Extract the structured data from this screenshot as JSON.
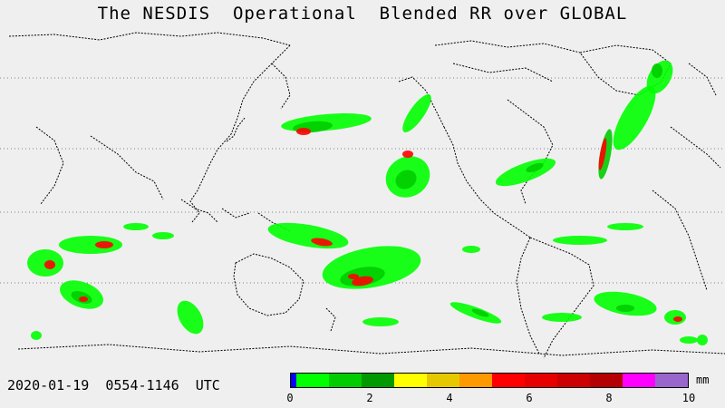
{
  "title": "The NESDIS  Operational  Blended RR over GLOBAL",
  "time_label": "2020-01-19  0554-1146  UTC",
  "legend": {
    "unit": "mm",
    "ticks": [
      "0",
      "2",
      "4",
      "6",
      "8",
      "10"
    ],
    "colors": [
      "#0000ff",
      "#00ff00",
      "#00cc00",
      "#009900",
      "#ffff00",
      "#e6c800",
      "#ff9900",
      "#ff0000",
      "#e60000",
      "#cc0000",
      "#b40000",
      "#ff00ff",
      "#9966cc"
    ]
  },
  "map_colors": {
    "background": "#efefef",
    "coastline": "#000000",
    "gridline": "#808080",
    "rain_light": "#00ff00",
    "rain_moderate": "#00cc00",
    "rain_heavy": "#009900",
    "rain_intense": "#ff0000",
    "rain_extreme": "#ff00ff"
  }
}
